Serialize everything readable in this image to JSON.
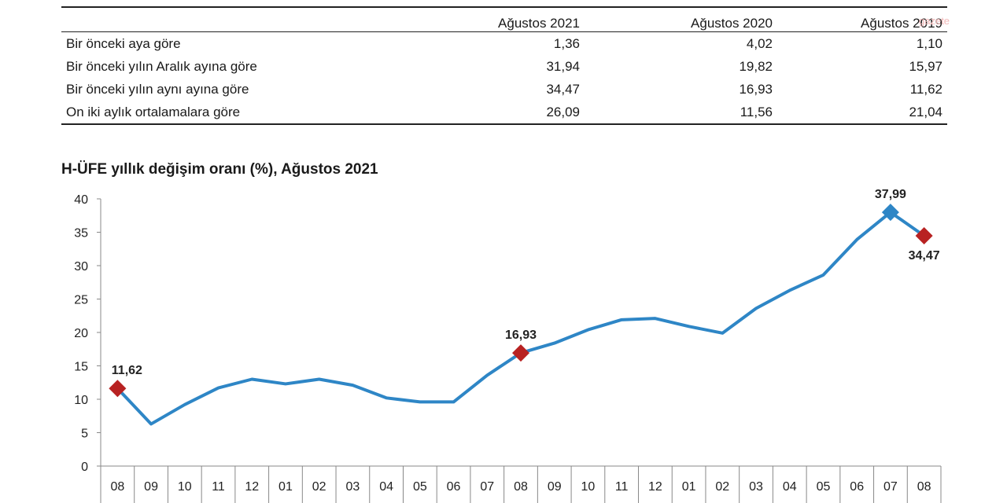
{
  "table": {
    "columns": [
      "",
      "Ağustos 2021",
      "Ağustos 2020",
      "Ağustos 2019"
    ],
    "rows": [
      {
        "label": "Bir önceki aya göre",
        "values": [
          "1,36",
          "4,02",
          "1,10"
        ]
      },
      {
        "label": "Bir önceki yılın Aralık ayına göre",
        "values": [
          "31,94",
          "19,82",
          "15,97"
        ]
      },
      {
        "label": "Bir önceki yılın aynı ayına göre",
        "values": [
          "34,47",
          "16,93",
          "11,62"
        ]
      },
      {
        "label": "On iki aylık ortalamalara göre",
        "values": [
          "26,09",
          "11,56",
          "21,04"
        ]
      }
    ]
  },
  "watermark": "gazete",
  "chart_data": {
    "type": "line",
    "title": "H-ÜFE yıllık değişim oranı (%), Ağustos 2021",
    "xlabel": "",
    "ylabel": "",
    "ylim": [
      0,
      40
    ],
    "yticks": [
      0,
      5,
      10,
      15,
      20,
      25,
      30,
      35,
      40
    ],
    "categories": [
      "08",
      "09",
      "10",
      "11",
      "12",
      "01",
      "02",
      "03",
      "04",
      "05",
      "06",
      "07",
      "08",
      "09",
      "10",
      "11",
      "12",
      "01",
      "02",
      "03",
      "04",
      "05",
      "06",
      "07",
      "08"
    ],
    "series": [
      {
        "values": [
          11.62,
          6.3,
          9.2,
          11.7,
          13.0,
          12.3,
          13.0,
          12.1,
          10.2,
          9.6,
          9.6,
          13.6,
          16.93,
          18.4,
          20.4,
          21.9,
          22.1,
          20.9,
          19.9,
          23.6,
          26.3,
          28.6,
          33.9,
          37.99,
          34.47
        ],
        "color": "#2e86c6"
      }
    ],
    "data_labels": [
      {
        "index": 0,
        "text": "11,62"
      },
      {
        "index": 12,
        "text": "16,93"
      },
      {
        "index": 23,
        "text": "37,99"
      },
      {
        "index": 24,
        "text": "34,47"
      }
    ],
    "red_markers": [
      0,
      12,
      24
    ],
    "blue_markers": [
      23
    ],
    "marker_color_red": "#b82222",
    "marker_color_blue": "#2e86c6",
    "grid": false
  }
}
